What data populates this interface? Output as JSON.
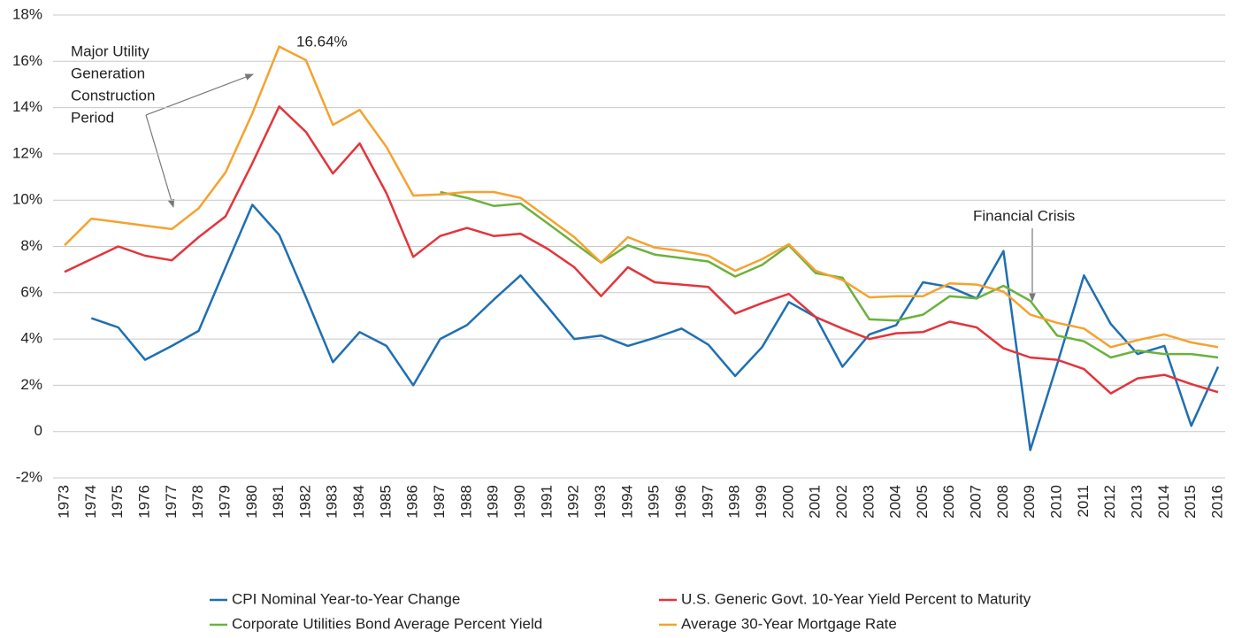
{
  "chart_data": {
    "type": "line",
    "categories": [
      "1973",
      "1974",
      "1975",
      "1976",
      "1977",
      "1978",
      "1979",
      "1980",
      "1981",
      "1982",
      "1983",
      "1984",
      "1985",
      "1986",
      "1987",
      "1988",
      "1989",
      "1990",
      "1991",
      "1992",
      "1993",
      "1994",
      "1995",
      "1996",
      "1997",
      "1998",
      "1999",
      "2000",
      "2001",
      "2002",
      "2003",
      "2004",
      "2005",
      "2006",
      "2007",
      "2008",
      "2009",
      "2010",
      "2011",
      "2012",
      "2013",
      "2014",
      "2015",
      "2016"
    ],
    "series": [
      {
        "name": "CPI Nominal Year-to-Year Change",
        "color": "#1f6fb2",
        "values": [
          null,
          4.9,
          4.5,
          3.1,
          3.7,
          4.35,
          7.1,
          9.8,
          8.5,
          5.8,
          3.0,
          4.3,
          3.7,
          2.0,
          4.0,
          4.6,
          5.7,
          6.75,
          5.4,
          4.0,
          4.15,
          3.7,
          4.05,
          4.45,
          3.75,
          2.4,
          3.65,
          5.6,
          4.95,
          2.8,
          4.2,
          4.6,
          6.45,
          6.25,
          5.75,
          7.8,
          -0.8,
          2.9,
          6.75,
          4.65,
          3.35,
          3.7,
          0.25,
          2.8
        ]
      },
      {
        "name": "U.S. Generic Govt. 10-Year Yield Percent to Maturity",
        "color": "#e2353b",
        "values": [
          6.9,
          7.45,
          8.0,
          7.6,
          7.4,
          8.4,
          9.3,
          11.6,
          14.05,
          12.95,
          11.15,
          12.45,
          10.3,
          7.55,
          8.45,
          8.8,
          8.45,
          8.55,
          7.9,
          7.1,
          5.85,
          7.1,
          6.45,
          6.35,
          6.25,
          5.1,
          5.55,
          5.95,
          4.95,
          4.45,
          4.0,
          4.25,
          4.3,
          4.75,
          4.5,
          3.6,
          3.2,
          3.1,
          2.7,
          1.65,
          2.3,
          2.45,
          2.05,
          1.7
        ]
      },
      {
        "name": "Corporate Utilities Bond Average Percent Yield",
        "color": "#6ab23e",
        "values": [
          null,
          null,
          null,
          null,
          null,
          null,
          null,
          null,
          null,
          null,
          null,
          null,
          null,
          null,
          10.35,
          10.1,
          9.75,
          9.85,
          9.0,
          8.15,
          7.3,
          8.05,
          7.65,
          7.5,
          7.35,
          6.7,
          7.2,
          8.05,
          6.85,
          6.65,
          4.85,
          4.8,
          5.05,
          5.85,
          5.75,
          6.3,
          5.65,
          4.15,
          3.9,
          3.2,
          3.5,
          3.35,
          3.35,
          3.2
        ]
      },
      {
        "name": "Average 30-Year Mortgage Rate",
        "color": "#f5a22f",
        "values": [
          8.05,
          9.2,
          9.05,
          8.9,
          8.75,
          9.65,
          11.2,
          13.75,
          16.64,
          16.05,
          13.25,
          13.9,
          12.3,
          10.2,
          10.25,
          10.35,
          10.35,
          10.1,
          9.25,
          8.4,
          7.3,
          8.4,
          7.95,
          7.8,
          7.6,
          6.95,
          7.45,
          8.1,
          6.95,
          6.55,
          5.8,
          5.85,
          5.85,
          6.4,
          6.35,
          6.05,
          5.05,
          4.7,
          4.45,
          3.65,
          3.95,
          4.2,
          3.85,
          3.65
        ]
      }
    ],
    "ylim": [
      -2,
      18
    ],
    "yticks": [
      {
        "value": -2,
        "label": "-2%"
      },
      0,
      {
        "value": 2,
        "label": "2%"
      },
      {
        "value": 4,
        "label": "4%"
      },
      {
        "value": 6,
        "label": "6%"
      },
      {
        "value": 8,
        "label": "8%"
      },
      {
        "value": 10,
        "label": "10%"
      },
      {
        "value": 12,
        "label": "12%"
      },
      {
        "value": 14,
        "label": "14%"
      },
      {
        "value": 16,
        "label": "16%"
      },
      {
        "value": 18,
        "label": "18%"
      }
    ],
    "grid": true,
    "legend": "bottom",
    "annotations": [
      {
        "lines": [
          "Major Utility",
          "Generation",
          "Construction",
          "Period"
        ]
      },
      {
        "text": "16.64%"
      },
      {
        "text": "Financial Crisis"
      }
    ]
  }
}
